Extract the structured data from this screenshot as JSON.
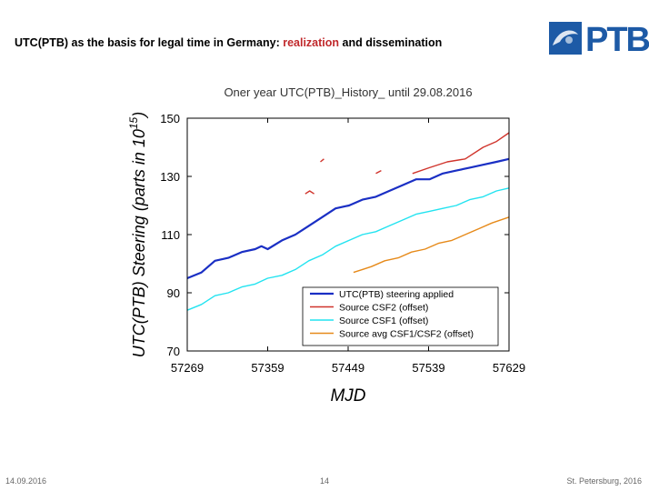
{
  "slide": {
    "title_prefix": "UTC(PTB) as the basis for legal time in Germany: ",
    "title_highlight": "realization",
    "title_suffix": " and dissemination",
    "logo_text": "PTB"
  },
  "footer": {
    "date": "14.09.2016",
    "page": "14",
    "place": "St. Petersburg, 2016"
  },
  "colors": {
    "steering": "#1a2fc4",
    "csf2": "#d0342c",
    "csf1": "#22e3f0",
    "avg": "#e68a1a",
    "title_highlight": "#c0282b",
    "brand": "#1d5aa6"
  },
  "chart_data": {
    "type": "line",
    "title": "Oner year UTC(PTB)_History_ until 29.08.2016",
    "xlabel": "MJD",
    "ylabel": "UTC(PTB) Steering (parts in 10^15)",
    "ylabel_main": "UTC(PTB) Steering (parts in 10",
    "ylabel_exp": "15",
    "ylabel_close": ")",
    "xlim": [
      57269,
      57629
    ],
    "ylim": [
      70,
      150
    ],
    "xticks": [
      57269,
      57359,
      57449,
      57539,
      57629
    ],
    "yticks": [
      70,
      90,
      110,
      130,
      150
    ],
    "grid": false,
    "legend_position": "bottom-right",
    "series": [
      {
        "name": "UTC(PTB) steering applied",
        "color": "#1a2fc4",
        "segments": [
          [
            [
              57269,
              95
            ],
            [
              57285,
              97
            ],
            [
              57300,
              101
            ],
            [
              57315,
              102
            ],
            [
              57330,
              104
            ],
            [
              57345,
              105
            ],
            [
              57352,
              106
            ],
            [
              57359,
              105
            ],
            [
              57375,
              108
            ],
            [
              57390,
              110
            ],
            [
              57405,
              113
            ],
            [
              57420,
              116
            ],
            [
              57435,
              119
            ],
            [
              57450,
              120
            ],
            [
              57465,
              122
            ],
            [
              57480,
              123
            ],
            [
              57495,
              125
            ],
            [
              57510,
              127
            ],
            [
              57525,
              129
            ],
            [
              57540,
              129
            ],
            [
              57555,
              131
            ],
            [
              57570,
              132
            ],
            [
              57585,
              133
            ],
            [
              57600,
              134
            ],
            [
              57615,
              135
            ],
            [
              57629,
              136
            ]
          ]
        ]
      },
      {
        "name": "Source CSF2 (offset)",
        "color": "#d0342c",
        "segments": [
          [
            [
              57401,
              124
            ],
            [
              57406,
              125
            ],
            [
              57411,
              124
            ]
          ],
          [
            [
              57418,
              135
            ],
            [
              57422,
              136
            ]
          ],
          [
            [
              57480,
              131
            ],
            [
              57486,
              132
            ]
          ],
          [
            [
              57521,
              131
            ],
            [
              57540,
              133
            ],
            [
              57560,
              135
            ],
            [
              57580,
              136
            ],
            [
              57600,
              140
            ],
            [
              57615,
              142
            ],
            [
              57629,
              145
            ]
          ]
        ]
      },
      {
        "name": "Source CSF1 (offset)",
        "color": "#22e3f0",
        "segments": [
          [
            [
              57269,
              84
            ],
            [
              57285,
              86
            ],
            [
              57300,
              89
            ],
            [
              57315,
              90
            ],
            [
              57330,
              92
            ],
            [
              57345,
              93
            ],
            [
              57359,
              95
            ],
            [
              57375,
              96
            ],
            [
              57390,
              98
            ],
            [
              57405,
              101
            ],
            [
              57420,
              103
            ],
            [
              57435,
              106
            ],
            [
              57450,
              108
            ],
            [
              57465,
              110
            ],
            [
              57480,
              111
            ],
            [
              57495,
              113
            ],
            [
              57510,
              115
            ],
            [
              57525,
              117
            ],
            [
              57540,
              118
            ],
            [
              57555,
              119
            ],
            [
              57570,
              120
            ],
            [
              57585,
              122
            ],
            [
              57600,
              123
            ],
            [
              57615,
              125
            ],
            [
              57629,
              126
            ]
          ]
        ]
      },
      {
        "name": "Source avg CSF1/CSF2 (offset)",
        "color": "#e68a1a",
        "segments": [
          [
            [
              57455,
              97
            ],
            [
              57465,
              98
            ],
            [
              57475,
              99
            ],
            [
              57490,
              101
            ],
            [
              57505,
              102
            ],
            [
              57520,
              104
            ],
            [
              57535,
              105
            ],
            [
              57550,
              107
            ],
            [
              57565,
              108
            ],
            [
              57580,
              110
            ],
            [
              57595,
              112
            ],
            [
              57610,
              114
            ],
            [
              57629,
              116
            ]
          ]
        ]
      }
    ]
  }
}
